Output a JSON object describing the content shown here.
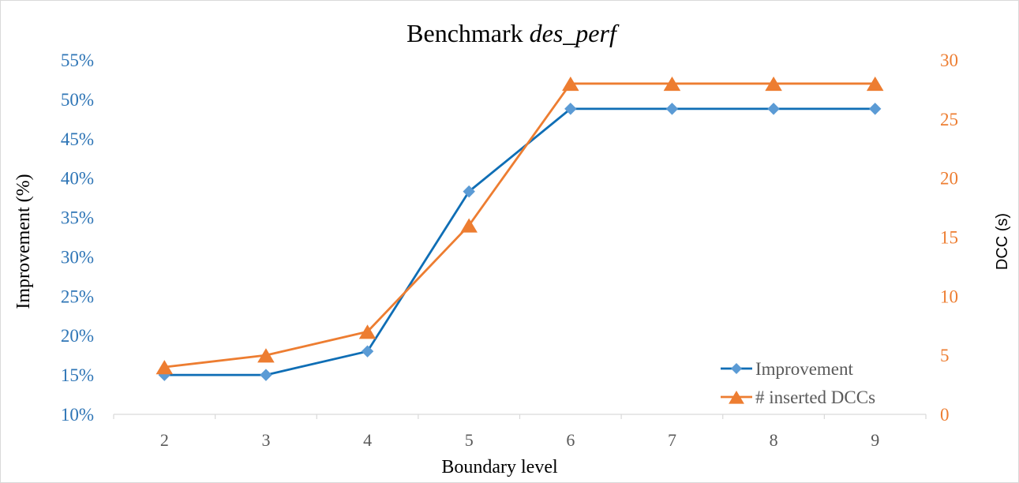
{
  "chart_data": {
    "type": "line",
    "title_prefix": "Benchmark ",
    "title_italic": "des_perf",
    "xlabel": "Boundary level",
    "ylabel_left": "Improvement (%)",
    "ylabel_right": "DCC (s)",
    "categories": [
      "2",
      "3",
      "4",
      "5",
      "6",
      "7",
      "8",
      "9"
    ],
    "y_left": {
      "lim": [
        10,
        55
      ],
      "ticks": [
        10,
        15,
        20,
        25,
        30,
        35,
        40,
        45,
        50,
        55
      ],
      "tick_labels": [
        "10%",
        "15%",
        "20%",
        "25%",
        "30%",
        "35%",
        "40%",
        "45%",
        "50%",
        "55%"
      ],
      "color": "#2e75b6"
    },
    "y_right": {
      "lim": [
        0,
        30
      ],
      "ticks": [
        0,
        5,
        10,
        15,
        20,
        25,
        30
      ],
      "tick_labels": [
        "0",
        "5",
        "10",
        "15",
        "20",
        "25",
        "30"
      ],
      "color": "#ed7d31"
    },
    "grid": false,
    "legend_position": "bottom-right",
    "series": [
      {
        "name": "Improvement",
        "axis": "left",
        "marker": "diamond",
        "color": "#0f6eb5",
        "marker_color": "#5b9bd5",
        "values": [
          15.0,
          15.0,
          18.0,
          38.3,
          48.8,
          48.8,
          48.8,
          48.8
        ]
      },
      {
        "name": "# inserted DCCs",
        "axis": "right",
        "marker": "triangle",
        "color": "#ed7d31",
        "marker_color": "#ed7d31",
        "values": [
          4,
          5,
          7,
          16,
          28,
          28,
          28,
          28
        ]
      }
    ]
  }
}
